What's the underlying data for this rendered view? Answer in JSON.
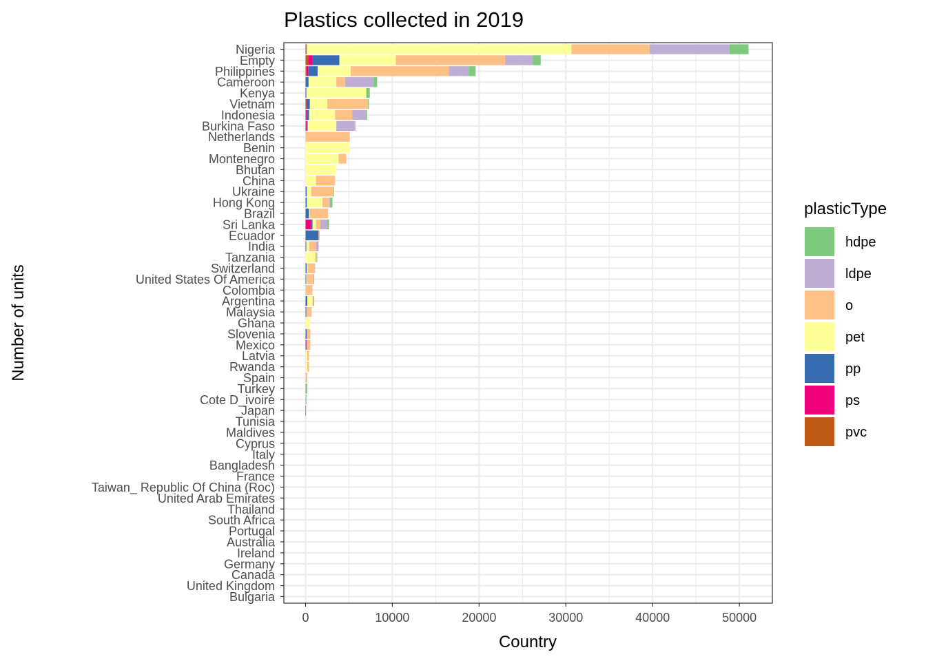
{
  "chart_data": {
    "type": "bar",
    "orientation": "horizontal",
    "stacked": true,
    "title": "Plastics collected in 2019",
    "xlabel": "Country",
    "ylabel": "Number of units",
    "xlim": [
      -2500,
      53800
    ],
    "xticks": [
      0,
      10000,
      20000,
      30000,
      40000,
      50000
    ],
    "xtick_labels": [
      "0",
      "10000",
      "20000",
      "30000",
      "40000",
      "50000"
    ],
    "grid": true,
    "legend": {
      "title": "plasticType",
      "placement": "right",
      "entries": [
        "hdpe",
        "ldpe",
        "o",
        "pet",
        "pp",
        "ps",
        "pvc"
      ]
    },
    "colors": {
      "hdpe": "#7fc97f",
      "ldpe": "#beaed4",
      "o": "#fdc086",
      "pet": "#ffff99",
      "pp": "#386cb0",
      "ps": "#f0027f",
      "pvc": "#bf5b17"
    },
    "stack_order": [
      "pvc",
      "ps",
      "pp",
      "pet",
      "o",
      "ldpe",
      "hdpe"
    ],
    "categories": [
      "Nigeria",
      "Empty",
      "Philippines",
      "Cameroon",
      "Kenya",
      "Vietnam",
      "Indonesia",
      "Burkina Faso",
      "Netherlands",
      "Benin",
      "Montenegro",
      "Bhutan",
      "China",
      "Ukraine",
      "Hong Kong",
      "Brazil",
      "Sri Lanka",
      "Ecuador",
      "India",
      "Tanzania",
      "Switzerland",
      "United States Of America",
      "Colombia",
      "Argentina",
      "Malaysia",
      "Ghana",
      "Slovenia",
      "Mexico",
      "Latvia",
      "Rwanda",
      "Spain",
      "Turkey",
      "Cote D_ivoire",
      "Japan",
      "Tunisia",
      "Maldives",
      "Cyprus",
      "Italy",
      "Bangladesh",
      "France",
      "Taiwan_ Republic Of China (Roc)",
      "United Arab Emirates",
      "Thailand",
      "South Africa",
      "Portugal",
      "Australia",
      "Ireland",
      "Germany",
      "Canada",
      "United Kingdom",
      "Bulgaria"
    ],
    "series": [
      {
        "name": "pvc",
        "values": [
          100,
          300,
          100,
          0,
          0,
          100,
          50,
          50,
          0,
          0,
          0,
          0,
          0,
          50,
          0,
          0,
          0,
          0,
          50,
          0,
          50,
          50,
          0,
          0,
          50,
          0,
          50,
          50,
          0,
          0,
          0,
          0,
          0,
          0,
          0,
          0,
          0,
          0,
          0,
          0,
          0,
          0,
          0,
          0,
          0,
          0,
          0,
          0,
          0,
          0,
          0
        ]
      },
      {
        "name": "ps",
        "values": [
          0,
          500,
          200,
          0,
          0,
          100,
          100,
          100,
          0,
          0,
          0,
          0,
          0,
          0,
          0,
          0,
          600,
          0,
          0,
          0,
          0,
          0,
          0,
          0,
          0,
          0,
          0,
          50,
          0,
          0,
          0,
          0,
          0,
          50,
          0,
          0,
          0,
          0,
          0,
          0,
          0,
          0,
          0,
          0,
          0,
          0,
          0,
          0,
          0,
          0,
          0
        ]
      },
      {
        "name": "pp",
        "values": [
          50,
          3100,
          1100,
          350,
          100,
          300,
          250,
          100,
          0,
          0,
          0,
          0,
          0,
          100,
          150,
          400,
          200,
          1500,
          50,
          0,
          100,
          50,
          0,
          200,
          50,
          0,
          100,
          50,
          0,
          0,
          0,
          0,
          0,
          0,
          0,
          0,
          0,
          0,
          0,
          0,
          0,
          0,
          0,
          0,
          0,
          0,
          0,
          0,
          0,
          0,
          0
        ]
      },
      {
        "name": "pet",
        "values": [
          30500,
          6500,
          3800,
          3200,
          6900,
          2000,
          3000,
          3300,
          0,
          5100,
          3800,
          3500,
          1200,
          500,
          1800,
          100,
          400,
          0,
          300,
          1100,
          100,
          100,
          0,
          600,
          0,
          500,
          0,
          0,
          200,
          200,
          0,
          0,
          0,
          0,
          0,
          0,
          0,
          0,
          0,
          0,
          0,
          0,
          0,
          0,
          0,
          0,
          0,
          0,
          0,
          0,
          0
        ]
      },
      {
        "name": "o",
        "values": [
          9000,
          12600,
          11300,
          1000,
          0,
          4700,
          2000,
          0,
          5100,
          0,
          900,
          0,
          2200,
          2600,
          800,
          2100,
          500,
          50,
          800,
          200,
          800,
          700,
          800,
          100,
          600,
          0,
          400,
          400,
          200,
          200,
          200,
          0,
          0,
          0,
          0,
          0,
          0,
          0,
          0,
          0,
          0,
          0,
          0,
          0,
          0,
          0,
          0,
          0,
          0,
          0,
          0
        ]
      },
      {
        "name": "ldpe",
        "values": [
          9200,
          3200,
          2300,
          3300,
          0,
          0,
          1600,
          2200,
          0,
          0,
          0,
          0,
          0,
          0,
          50,
          0,
          800,
          0,
          300,
          0,
          50,
          100,
          0,
          0,
          0,
          0,
          0,
          0,
          0,
          0,
          0,
          0,
          0,
          0,
          0,
          0,
          0,
          0,
          0,
          0,
          0,
          0,
          0,
          0,
          0,
          0,
          0,
          0,
          0,
          0,
          0
        ]
      },
      {
        "name": "hdpe",
        "values": [
          2200,
          900,
          800,
          400,
          400,
          100,
          100,
          0,
          0,
          0,
          0,
          0,
          0,
          50,
          300,
          0,
          200,
          50,
          0,
          50,
          0,
          0,
          0,
          100,
          0,
          0,
          0,
          0,
          0,
          0,
          0,
          200,
          100,
          0,
          0,
          0,
          0,
          0,
          0,
          0,
          0,
          0,
          0,
          0,
          0,
          0,
          0,
          0,
          0,
          0,
          0
        ]
      }
    ]
  }
}
